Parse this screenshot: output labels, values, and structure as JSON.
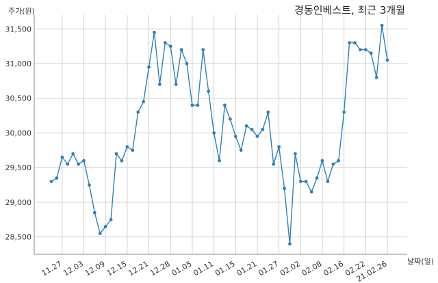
{
  "chart_data": {
    "type": "line",
    "title": "경동인베스트, 최근 3개월",
    "ylabel": "주가(원)",
    "xlabel": "날짜(일)",
    "ylim": [
      28250,
      31700
    ],
    "yticks": [
      28500,
      29000,
      29500,
      30000,
      30500,
      31000,
      31500
    ],
    "ytick_labels": [
      "28,500",
      "29,000",
      "29,500",
      "30,000",
      "30,500",
      "31,000",
      "31,500"
    ],
    "xtick_labels": [
      "11.27",
      "12.03",
      "12.09",
      "12.15",
      "12.21",
      "12.28",
      "01.05",
      "01.11",
      "01.15",
      "01.21",
      "01.27",
      "02.02",
      "02.08",
      "02.16",
      "02.22",
      "21.02.26"
    ],
    "xtick_indices": [
      2,
      6,
      10,
      14,
      18,
      22,
      26,
      30,
      34,
      38,
      42,
      46,
      50,
      54,
      58,
      62
    ],
    "grid": true,
    "color": "#2e7fb8",
    "series": [
      {
        "values": [
          29300,
          29350,
          29650,
          29550,
          29700,
          29550,
          29600,
          29250,
          28850,
          28550,
          28650,
          28750,
          29700,
          29600,
          29800,
          29750,
          30300,
          30450,
          30950,
          31450,
          30700,
          31300,
          31250,
          30700,
          31200,
          31000,
          30400,
          30400,
          31200,
          30600,
          30000,
          29600,
          30400,
          30200,
          29950,
          29750,
          30100,
          30050,
          29950,
          30050,
          30300,
          29550,
          29800,
          29200,
          28400,
          29700,
          29300,
          29300,
          29150,
          29350,
          29600,
          29300,
          29550,
          29600,
          30300,
          31300,
          31300,
          31200,
          31200,
          31150,
          30800,
          31550,
          31050
        ]
      }
    ]
  }
}
